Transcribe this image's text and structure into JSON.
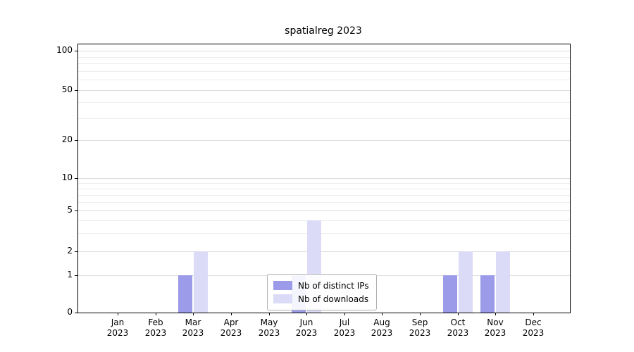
{
  "title": "spatialreg 2023",
  "chart_data": {
    "type": "bar",
    "title": "spatialreg 2023",
    "categories": [
      "Jan",
      "Feb",
      "Mar",
      "Apr",
      "May",
      "Jun",
      "Jul",
      "Aug",
      "Sep",
      "Oct",
      "Nov",
      "Dec"
    ],
    "year_label": "2023",
    "series": [
      {
        "name": "Nb of distinct IPs",
        "color": "#9b9bea",
        "values": [
          0,
          0,
          1,
          0,
          0,
          1,
          0,
          0,
          0,
          1,
          1,
          0
        ]
      },
      {
        "name": "Nb of downloads",
        "color": "#dbdbf7",
        "values": [
          0,
          0,
          2,
          0,
          0,
          4,
          0,
          0,
          0,
          2,
          2,
          0
        ]
      }
    ],
    "yticks": [
      0,
      1,
      2,
      5,
      10,
      20,
      50,
      100
    ],
    "minor_gridlines": [
      3,
      4,
      6,
      7,
      8,
      9,
      30,
      40,
      60,
      70,
      80,
      90
    ],
    "ylim": [
      0,
      100
    ],
    "yscale": "log-like",
    "grid": true,
    "legend_position": "bottom-center"
  }
}
